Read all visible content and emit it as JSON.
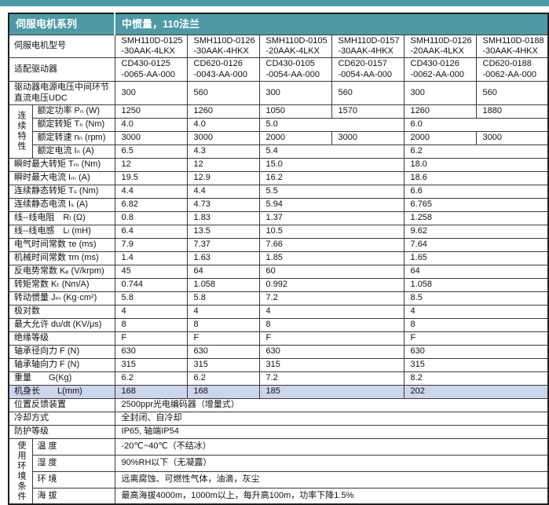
{
  "colors": {
    "header_teal": "#4d9aa5",
    "highlight_row": "#cbd5ec",
    "border": "#3a3a3a"
  },
  "header": {
    "series_label": "伺服电机系列",
    "series_value": "中惯量，110法兰"
  },
  "table": {
    "rows": [
      {
        "label": "伺服电机型号",
        "cells": [
          {
            "t": "SMH110D-0125\n-30AAK-4LKX"
          },
          {
            "t": "SMH110D-0126\n-30AAK-4HKX"
          },
          {
            "t": "SMH110D-0105\n-20AAK-4LKX"
          },
          {
            "t": "SMH110D-0157\n-30AAK-4HKX"
          },
          {
            "t": "SMH110D-0126\n-20AAK-4LKX"
          },
          {
            "t": "SMH110D-0188\n-30AAK-4HKX"
          }
        ]
      },
      {
        "label": "适配驱动器",
        "cells": [
          {
            "t": "CD430-0125\n-0065-AA-000"
          },
          {
            "t": "CD620-0126\n-0043-AA-000"
          },
          {
            "t": "CD430-0105\n-0054-AA-000"
          },
          {
            "t": "CD620-0157\n-0054-AA-000"
          },
          {
            "t": "CD430-0126\n-0062-AA-000"
          },
          {
            "t": "CD620-0188\n-0062-AA-000"
          }
        ]
      },
      {
        "label": "驱动器电源电压中间环节\n直流电压UDC",
        "cells": [
          {
            "t": "300"
          },
          {
            "t": "560"
          },
          {
            "t": "300"
          },
          {
            "t": "560"
          },
          {
            "t": "300"
          },
          {
            "t": "560"
          }
        ]
      },
      {
        "group": "连续特性",
        "groupRows": 4,
        "inGroup": true,
        "label": "额定功率 Pₙ (W)",
        "cells": [
          {
            "t": "1250"
          },
          {
            "t": "1260"
          },
          {
            "t": "1050"
          },
          {
            "t": "1570"
          },
          {
            "t": "1260"
          },
          {
            "t": "1880"
          }
        ]
      },
      {
        "inGroup": true,
        "label": "额定转矩 Tₙ (Nm)",
        "cells": [
          {
            "t": "4.0"
          },
          {
            "t": "4.0"
          },
          {
            "t": "5.0",
            "s": 2
          },
          {
            "t": "6.0",
            "s": 2
          }
        ]
      },
      {
        "inGroup": true,
        "label": "额定转速 nₙ (rpm)",
        "cells": [
          {
            "t": "3000"
          },
          {
            "t": "3000"
          },
          {
            "t": "2000"
          },
          {
            "t": "3000"
          },
          {
            "t": "2000"
          },
          {
            "t": "3000"
          }
        ]
      },
      {
        "inGroup": true,
        "label": "额定电流 Iₙ (A)",
        "cells": [
          {
            "t": "6.5"
          },
          {
            "t": "4.3"
          },
          {
            "t": "5.4",
            "s": 2
          },
          {
            "t": "6.2",
            "s": 2
          }
        ]
      },
      {
        "label": "瞬时最大转矩 Tₘ (Nm)",
        "cells": [
          {
            "t": "12"
          },
          {
            "t": "12"
          },
          {
            "t": "15.0",
            "s": 2
          },
          {
            "t": "18.0",
            "s": 2
          }
        ]
      },
      {
        "label": "瞬时最大电流 Iₘ (A)",
        "cells": [
          {
            "t": "19.5"
          },
          {
            "t": "12.9"
          },
          {
            "t": "16.2",
            "s": 2
          },
          {
            "t": "18.6",
            "s": 2
          }
        ]
      },
      {
        "label": "连续静态转矩 Tₛ (Nm)",
        "cells": [
          {
            "t": "4.4"
          },
          {
            "t": "4.4"
          },
          {
            "t": "5.5",
            "s": 2
          },
          {
            "t": "6.6",
            "s": 2
          }
        ]
      },
      {
        "label": "连续静态电流 Iₛ (A)",
        "cells": [
          {
            "t": "6.82"
          },
          {
            "t": "4.73"
          },
          {
            "t": "5.94",
            "s": 2
          },
          {
            "t": "6.765",
            "s": 2
          }
        ]
      },
      {
        "label": "线--线电阻　Rₗ (Ω)",
        "cells": [
          {
            "t": "0.8"
          },
          {
            "t": "1.83"
          },
          {
            "t": "1.37",
            "s": 2
          },
          {
            "t": "1.258",
            "s": 2
          }
        ]
      },
      {
        "label": "线--线电感　Lₗ (mH)",
        "cells": [
          {
            "t": "6.4"
          },
          {
            "t": "13.5"
          },
          {
            "t": "10.5",
            "s": 2
          },
          {
            "t": "9.62",
            "s": 2
          }
        ]
      },
      {
        "label": "电气时间常数 τe (ms)",
        "cells": [
          {
            "t": "7.9"
          },
          {
            "t": "7.37"
          },
          {
            "t": "7.66",
            "s": 2
          },
          {
            "t": "7.64",
            "s": 2
          }
        ]
      },
      {
        "label": "机械时间常数 τm (ms)",
        "cells": [
          {
            "t": "1.4"
          },
          {
            "t": "1.63"
          },
          {
            "t": "1.85",
            "s": 2
          },
          {
            "t": "1.65",
            "s": 2
          }
        ]
      },
      {
        "label": "反电势常数 Kₑ (V/krpm)",
        "cells": [
          {
            "t": "45"
          },
          {
            "t": "64"
          },
          {
            "t": "60",
            "s": 2
          },
          {
            "t": "64",
            "s": 2
          }
        ]
      },
      {
        "label": "转矩常数 Kₜ (Nm/A)",
        "cells": [
          {
            "t": "0.744"
          },
          {
            "t": "1.058"
          },
          {
            "t": "0.992",
            "s": 2
          },
          {
            "t": "1.058",
            "s": 2
          }
        ]
      },
      {
        "label": "转动惯量 Jₘ (Kg·cm²)",
        "cells": [
          {
            "t": "5.8"
          },
          {
            "t": "5.8"
          },
          {
            "t": "7.2",
            "s": 2
          },
          {
            "t": "8.5",
            "s": 2
          }
        ]
      },
      {
        "label": "极对数",
        "cells": [
          {
            "t": "4"
          },
          {
            "t": "4"
          },
          {
            "t": "4",
            "s": 2
          },
          {
            "t": "4",
            "s": 2
          }
        ]
      },
      {
        "label": "最大允许 du/dt (KV/μs)",
        "cells": [
          {
            "t": "8"
          },
          {
            "t": "8"
          },
          {
            "t": "8",
            "s": 2
          },
          {
            "t": "8",
            "s": 2
          }
        ]
      },
      {
        "label": "绝缘等级",
        "cells": [
          {
            "t": "F"
          },
          {
            "t": "F"
          },
          {
            "t": "F",
            "s": 2
          },
          {
            "t": "F",
            "s": 2
          }
        ]
      },
      {
        "label": "轴承径向力 F (N)",
        "cells": [
          {
            "t": "630"
          },
          {
            "t": "630"
          },
          {
            "t": "630",
            "s": 2
          },
          {
            "t": "630",
            "s": 2
          }
        ]
      },
      {
        "label": "轴承轴向力 F (N)",
        "cells": [
          {
            "t": "315"
          },
          {
            "t": "315"
          },
          {
            "t": "315",
            "s": 2
          },
          {
            "t": "315",
            "s": 2
          }
        ]
      },
      {
        "label": "重量　　G(Kg)",
        "cells": [
          {
            "t": "6.2"
          },
          {
            "t": "6.2"
          },
          {
            "t": "7.2",
            "s": 2
          },
          {
            "t": "8.2",
            "s": 2
          }
        ]
      },
      {
        "label": "机身长　　L(mm)",
        "highlight": true,
        "cells": [
          {
            "t": "168"
          },
          {
            "t": "168"
          },
          {
            "t": "185",
            "s": 2
          },
          {
            "t": "202",
            "s": 2
          }
        ]
      },
      {
        "label": "位置反馈装置",
        "cells": [
          {
            "t": "2500ppr光电编码器（增量式）",
            "s": 6
          }
        ]
      },
      {
        "label": "冷却方式",
        "cells": [
          {
            "t": "全封闭、自冷却",
            "s": 6
          }
        ]
      },
      {
        "label": "防护等级",
        "cells": [
          {
            "t": "IP65, 轴端IP54",
            "s": 6
          }
        ]
      },
      {
        "group": "使用环境条件",
        "groupRows": 4,
        "inGroup": true,
        "label": "温 度",
        "cells": [
          {
            "t": "-20℃~40℃（不结冰）",
            "s": 6
          }
        ]
      },
      {
        "inGroup": true,
        "label": "湿 度",
        "cells": [
          {
            "t": "90%RH以下（无凝露）",
            "s": 6
          }
        ]
      },
      {
        "inGroup": true,
        "label": "环 境",
        "cells": [
          {
            "t": "远离腐蚀、可燃性气体，油滴，灰尘",
            "s": 6
          }
        ]
      },
      {
        "inGroup": true,
        "label": "海 拔",
        "cells": [
          {
            "t": "最高海拔4000m，1000m以上，每升高100m，功率下降1.5%",
            "s": 6
          }
        ]
      }
    ]
  }
}
